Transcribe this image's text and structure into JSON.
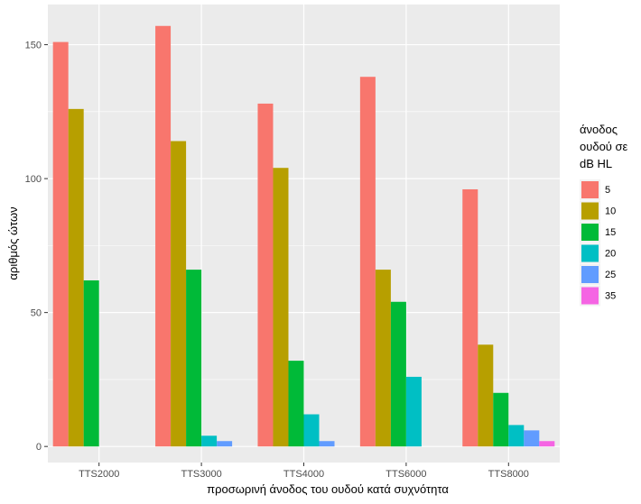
{
  "chart_data": {
    "type": "bar",
    "title": "",
    "xlabel": "προσωρινή άνοδος του ουδού κατά συχνότητα",
    "ylabel": "αριθμός ώτων",
    "categories": [
      "TTS2000",
      "TTS3000",
      "TTS4000",
      "TTS6000",
      "TTS8000"
    ],
    "y_ticks": [
      "0",
      "50",
      "100",
      "150"
    ],
    "ylim": [
      -6,
      165
    ],
    "grid": true,
    "legend": {
      "position": "right",
      "title_lines": [
        "άνοδος",
        "ουδού σε",
        "dB HL"
      ]
    },
    "series": [
      {
        "name": "5",
        "color": "#F8766D",
        "values": [
          151,
          157,
          128,
          138,
          96
        ]
      },
      {
        "name": "10",
        "color": "#B79F00",
        "values": [
          126,
          114,
          104,
          66,
          38
        ]
      },
      {
        "name": "15",
        "color": "#00BA38",
        "values": [
          62,
          66,
          32,
          54,
          20
        ]
      },
      {
        "name": "20",
        "color": "#00BFC4",
        "values": [
          0,
          4,
          12,
          26,
          8
        ]
      },
      {
        "name": "25",
        "color": "#619CFF",
        "values": [
          0,
          2,
          2,
          0,
          6
        ]
      },
      {
        "name": "35",
        "color": "#F564E3",
        "values": [
          0,
          0,
          0,
          0,
          2
        ]
      }
    ],
    "panel_background": "#EBEBEB",
    "grid_color": "#FFFFFF"
  }
}
